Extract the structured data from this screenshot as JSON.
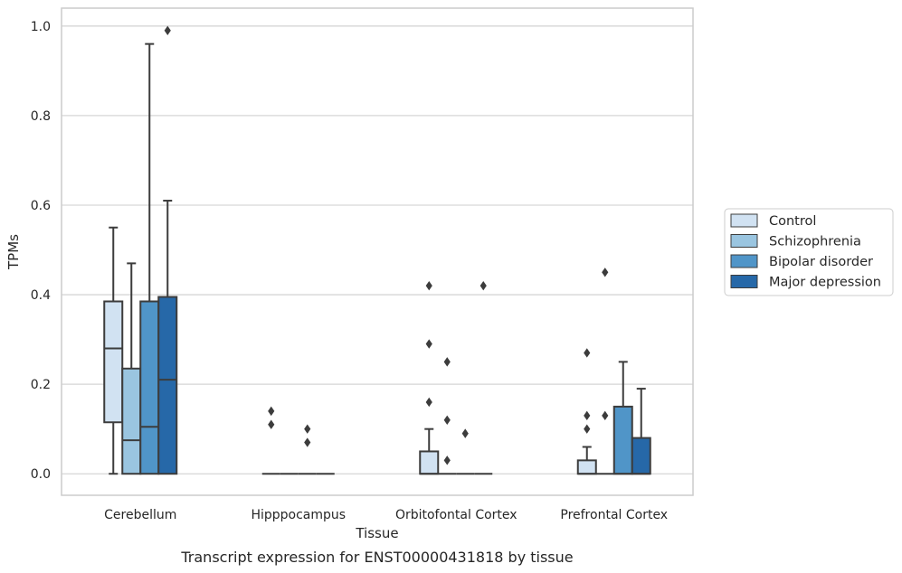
{
  "chart_data": {
    "type": "box",
    "xlabel": "Tissue",
    "ylabel": "TPMs",
    "caption": "Transcript expression for ENST00000431818 by tissue",
    "ylim": [
      -0.048,
      1.04
    ],
    "yticks": [
      "0.0",
      "0.2",
      "0.4",
      "0.6",
      "0.8",
      "1.0"
    ],
    "grid": true,
    "legend_position": "right",
    "categories": [
      "Cerebellum",
      "Hipppocampus",
      "Orbitofontal Cortex",
      "Prefrontal Cortex"
    ],
    "series": [
      {
        "name": "Control",
        "color": "#d1e2f2",
        "boxes": [
          {
            "min": 0.0,
            "q1": 0.115,
            "median": 0.28,
            "q3": 0.385,
            "max": 0.55,
            "outliers": []
          },
          {
            "min": 0.0,
            "q1": 0.0,
            "median": 0.0,
            "q3": 0.0,
            "max": 0.0,
            "outliers": [
              0.11,
              0.14
            ]
          },
          {
            "min": 0.0,
            "q1": 0.0,
            "median": 0.0,
            "q3": 0.05,
            "max": 0.1,
            "outliers": [
              0.16,
              0.29,
              0.42
            ]
          },
          {
            "min": 0.0,
            "q1": 0.0,
            "median": 0.0,
            "q3": 0.03,
            "max": 0.06,
            "outliers": [
              0.1,
              0.13,
              0.27
            ]
          }
        ]
      },
      {
        "name": "Schizophrenia",
        "color": "#9ac5e0",
        "boxes": [
          {
            "min": 0.0,
            "q1": 0.0,
            "median": 0.075,
            "q3": 0.235,
            "max": 0.47,
            "outliers": []
          },
          {
            "min": 0.0,
            "q1": 0.0,
            "median": 0.0,
            "q3": 0.0,
            "max": 0.0,
            "outliers": []
          },
          {
            "min": 0.0,
            "q1": 0.0,
            "median": 0.0,
            "q3": 0.0,
            "max": 0.0,
            "outliers": [
              0.03,
              0.12,
              0.25
            ]
          },
          {
            "min": 0.0,
            "q1": 0.0,
            "median": 0.0,
            "q3": 0.0,
            "max": 0.0,
            "outliers": [
              0.13,
              0.45
            ]
          }
        ]
      },
      {
        "name": "Bipolar disorder",
        "color": "#5095c8",
        "boxes": [
          {
            "min": 0.0,
            "q1": 0.0,
            "median": 0.105,
            "q3": 0.385,
            "max": 0.96,
            "outliers": []
          },
          {
            "min": 0.0,
            "q1": 0.0,
            "median": 0.0,
            "q3": 0.0,
            "max": 0.0,
            "outliers": [
              0.07,
              0.1
            ]
          },
          {
            "min": 0.0,
            "q1": 0.0,
            "median": 0.0,
            "q3": 0.0,
            "max": 0.0,
            "outliers": [
              0.09
            ]
          },
          {
            "min": 0.0,
            "q1": 0.0,
            "median": 0.0,
            "q3": 0.15,
            "max": 0.25,
            "outliers": []
          }
        ]
      },
      {
        "name": "Major depression",
        "color": "#2668a8",
        "boxes": [
          {
            "min": 0.0,
            "q1": 0.0,
            "median": 0.21,
            "q3": 0.395,
            "max": 0.61,
            "outliers": [
              0.99
            ]
          },
          {
            "min": 0.0,
            "q1": 0.0,
            "median": 0.0,
            "q3": 0.0,
            "max": 0.0,
            "outliers": []
          },
          {
            "min": 0.0,
            "q1": 0.0,
            "median": 0.0,
            "q3": 0.0,
            "max": 0.0,
            "outliers": [
              0.42
            ]
          },
          {
            "min": 0.0,
            "q1": 0.0,
            "median": 0.0,
            "q3": 0.08,
            "max": 0.19,
            "outliers": []
          }
        ]
      }
    ]
  }
}
